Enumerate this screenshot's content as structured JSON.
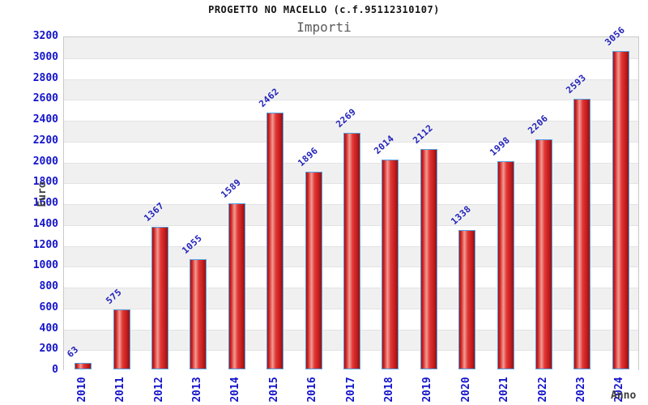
{
  "chart_data": {
    "type": "bar",
    "title": "PROGETTO NO MACELLO (c.f.95112310107)",
    "subtitle": "Importi",
    "xlabel": "Anno",
    "ylabel": "Euro",
    "categories": [
      "2010",
      "2011",
      "2012",
      "2013",
      "2014",
      "2015",
      "2016",
      "2017",
      "2018",
      "2019",
      "2020",
      "2021",
      "2022",
      "2023",
      "2024"
    ],
    "values": [
      63,
      575,
      1367,
      1055,
      1589,
      2462,
      1896,
      2269,
      2014,
      2112,
      1338,
      1998,
      2206,
      2593,
      3056
    ],
    "ylim": [
      0,
      3200
    ],
    "ytick_step": 200,
    "grid": "alternating horizontal bands, gray topmost",
    "legend_position": "none",
    "bar_value_labels": "rotated 45deg above each bar, blue",
    "x_tick_style": "rotated 90deg vertical, blue",
    "colors": {
      "bar_border": "#55a0e0",
      "bar_gradient": [
        "#9e1515",
        "#d42424",
        "#ef9d94",
        "#e23535",
        "#cc2222",
        "#991111"
      ],
      "tick_label": "#1414cc",
      "value_label": "#2222bb",
      "band_gray": "#f0f0f0",
      "band_white": "#ffffff",
      "grid_line": "#e3e3e3",
      "plot_border": "#c9c9c9",
      "title_color": "#141414",
      "subtitle_color": "#5a5a5a",
      "axis_title_color": "#3f3f3f"
    }
  }
}
